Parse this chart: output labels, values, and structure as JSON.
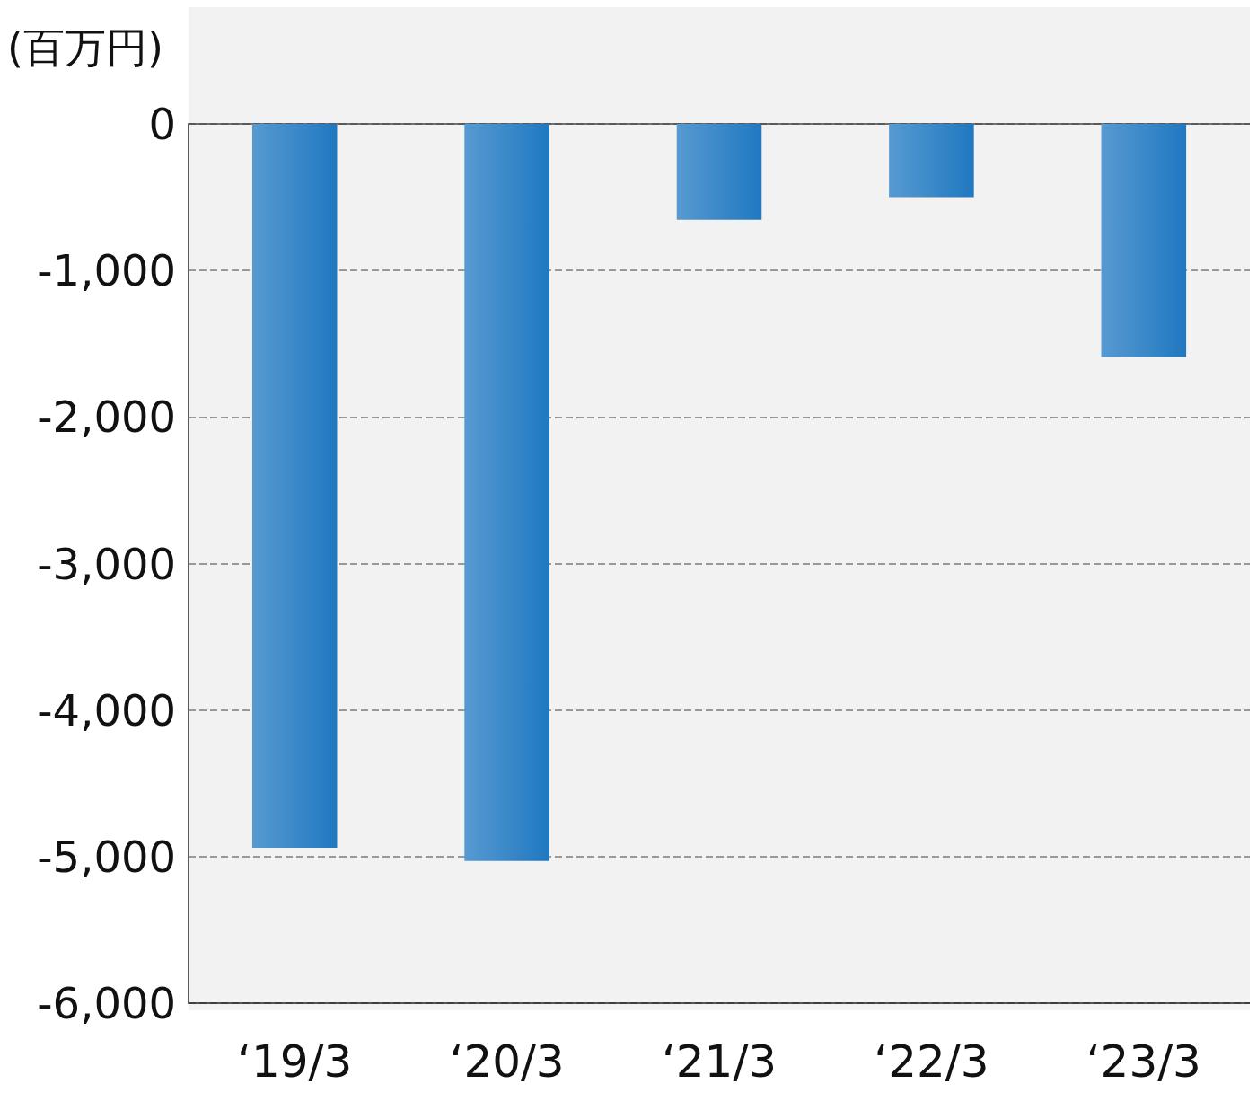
{
  "chart_data": {
    "type": "bar",
    "ylabel": "(百万円)",
    "categories": [
      "‘19/3",
      "‘20/3",
      "‘21/3",
      "‘22/3",
      "‘23/3"
    ],
    "values": [
      -4940,
      -5030,
      -655,
      -500,
      -1590
    ],
    "color": "#1f78c1",
    "ylim": [
      -6000,
      0
    ],
    "yticks": [
      {
        "value": -6000,
        "label": "-6,000"
      },
      {
        "value": -5000,
        "label": "-5,000"
      },
      {
        "value": -4000,
        "label": "-4,000"
      },
      {
        "value": -3000,
        "label": "-3,000"
      },
      {
        "value": -2000,
        "label": "-2,000"
      },
      {
        "value": -1000,
        "label": "-1,000"
      },
      0
    ],
    "grid": "y"
  }
}
